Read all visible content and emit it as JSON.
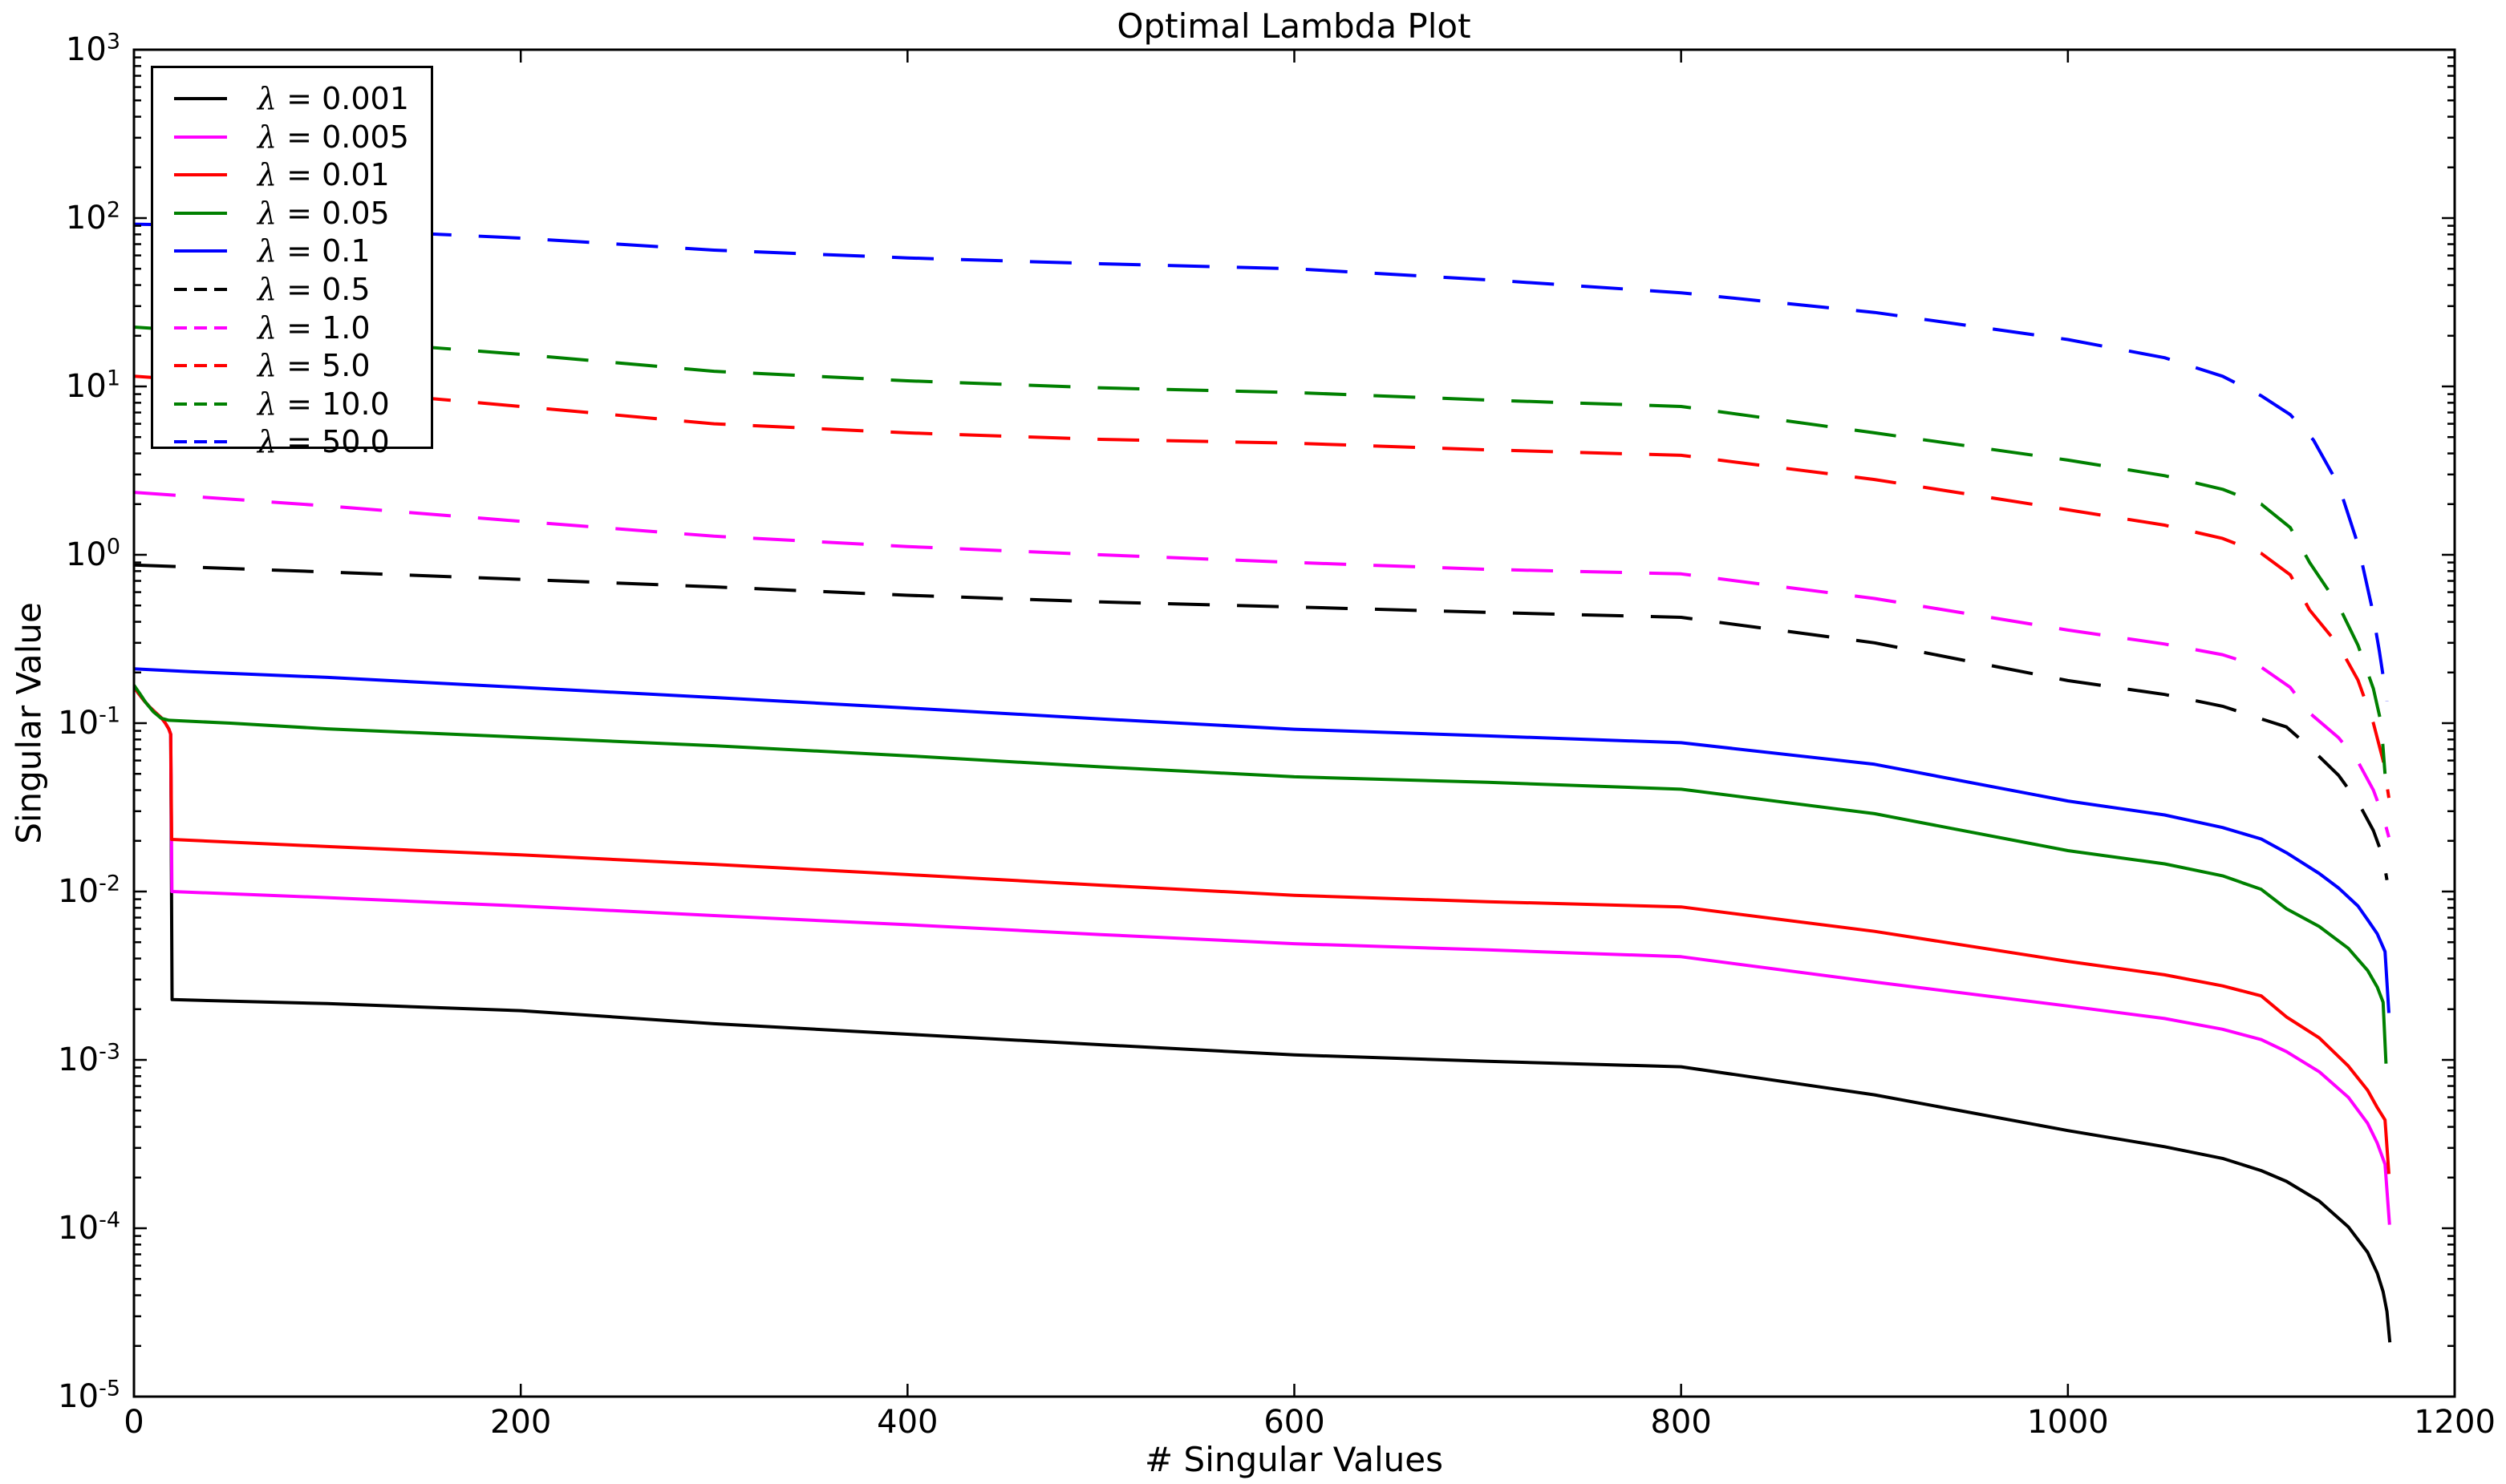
{
  "chart_data": {
    "type": "line",
    "title": "Optimal Lambda Plot",
    "xlabel": "# Singular Values",
    "ylabel": "Singular Value",
    "lambda_symbol": "λ",
    "grid": false,
    "legend_position": "upper-left",
    "x_axis": {
      "scale": "linear",
      "min": 0,
      "max": 1200,
      "ticks": [
        0,
        200,
        400,
        600,
        800,
        1000,
        1200
      ]
    },
    "y_axis": {
      "scale": "log",
      "min": 1e-05,
      "max": 1000,
      "tick_exponents": [
        3,
        2,
        1,
        0,
        -1,
        -2,
        -3,
        -4,
        -5
      ]
    },
    "colors": {
      "black": "#000000",
      "magenta": "#ff00ff",
      "red": "#ff0000",
      "green": "#008000",
      "blue": "#0000ff"
    },
    "series": [
      {
        "name": "lambda-0.001",
        "legend_value": "0.001",
        "color": "#000000",
        "style": "solid",
        "points": [
          [
            0,
            0.165
          ],
          [
            2,
            0.152
          ],
          [
            5,
            0.137
          ],
          [
            8,
            0.125
          ],
          [
            11,
            0.116
          ],
          [
            14,
            0.108
          ],
          [
            16,
            0.101
          ],
          [
            18,
            0.0925
          ],
          [
            19,
            0.086
          ],
          [
            19.7,
            0.00228
          ],
          [
            100,
            0.00216
          ],
          [
            200,
            0.00196
          ],
          [
            300,
            0.00164
          ],
          [
            400,
            0.00142
          ],
          [
            500,
            0.00123
          ],
          [
            600,
            0.00107
          ],
          [
            700,
            0.00098
          ],
          [
            800,
            0.00091
          ],
          [
            900,
            0.00062
          ],
          [
            1000,
            0.00038
          ],
          [
            1050,
            0.000305
          ],
          [
            1080,
            0.00026
          ],
          [
            1100,
            0.00022
          ],
          [
            1113,
            0.00019
          ],
          [
            1130,
            0.000145
          ],
          [
            1145,
            0.000102
          ],
          [
            1155,
            7.2e-05
          ],
          [
            1160,
            5.4e-05
          ],
          [
            1163,
            4.2e-05
          ],
          [
            1165,
            3.2e-05
          ],
          [
            1166.5,
            2.1e-05
          ]
        ]
      },
      {
        "name": "lambda-0.005",
        "legend_value": "0.005",
        "color": "#ff00ff",
        "style": "solid",
        "points": [
          [
            0,
            0.165
          ],
          [
            2,
            0.152
          ],
          [
            5,
            0.137
          ],
          [
            8,
            0.125
          ],
          [
            11,
            0.116
          ],
          [
            14,
            0.108
          ],
          [
            16,
            0.101
          ],
          [
            18,
            0.0925
          ],
          [
            19,
            0.086
          ],
          [
            19.6,
            0.01
          ],
          [
            100,
            0.0092
          ],
          [
            200,
            0.0082
          ],
          [
            300,
            0.0072
          ],
          [
            400,
            0.00635
          ],
          [
            500,
            0.00555
          ],
          [
            600,
            0.0049
          ],
          [
            700,
            0.0045
          ],
          [
            800,
            0.0041
          ],
          [
            900,
            0.0029
          ],
          [
            1000,
            0.00209
          ],
          [
            1050,
            0.00176
          ],
          [
            1080,
            0.00152
          ],
          [
            1100,
            0.00132
          ],
          [
            1113,
            0.00112
          ],
          [
            1130,
            0.00085
          ],
          [
            1145,
            0.0006
          ],
          [
            1155,
            0.00042
          ],
          [
            1160,
            0.00032
          ],
          [
            1164,
            0.00024
          ],
          [
            1166.3,
            0.000105
          ]
        ]
      },
      {
        "name": "lambda-0.01",
        "legend_value": "0.01",
        "color": "#ff0000",
        "style": "solid",
        "points": [
          [
            0,
            0.165
          ],
          [
            2,
            0.152
          ],
          [
            5,
            0.137
          ],
          [
            8,
            0.125
          ],
          [
            11,
            0.116
          ],
          [
            14,
            0.108
          ],
          [
            16,
            0.101
          ],
          [
            18,
            0.0925
          ],
          [
            19,
            0.086
          ],
          [
            19.5,
            0.0204
          ],
          [
            100,
            0.0185
          ],
          [
            200,
            0.0165
          ],
          [
            300,
            0.0145
          ],
          [
            400,
            0.0126
          ],
          [
            500,
            0.0109
          ],
          [
            600,
            0.0095
          ],
          [
            700,
            0.0087
          ],
          [
            800,
            0.0081
          ],
          [
            900,
            0.0058
          ],
          [
            1000,
            0.00385
          ],
          [
            1050,
            0.0032
          ],
          [
            1080,
            0.00275
          ],
          [
            1100,
            0.0024
          ],
          [
            1113,
            0.0018
          ],
          [
            1130,
            0.00135
          ],
          [
            1145,
            0.00092
          ],
          [
            1155,
            0.00066
          ],
          [
            1160,
            0.00052
          ],
          [
            1164,
            0.00044
          ],
          [
            1166,
            0.00021
          ]
        ]
      },
      {
        "name": "lambda-0.05",
        "legend_value": "0.05",
        "color": "#008000",
        "style": "solid",
        "points": [
          [
            0,
            0.168
          ],
          [
            3,
            0.15
          ],
          [
            6,
            0.133
          ],
          [
            10,
            0.117
          ],
          [
            14,
            0.107
          ],
          [
            18,
            0.104
          ],
          [
            50,
            0.1
          ],
          [
            100,
            0.0925
          ],
          [
            200,
            0.0825
          ],
          [
            300,
            0.0735
          ],
          [
            400,
            0.064
          ],
          [
            500,
            0.055
          ],
          [
            600,
            0.048
          ],
          [
            700,
            0.0445
          ],
          [
            800,
            0.0405
          ],
          [
            900,
            0.029
          ],
          [
            1000,
            0.0175
          ],
          [
            1050,
            0.0146
          ],
          [
            1080,
            0.0124
          ],
          [
            1100,
            0.0103
          ],
          [
            1113,
            0.0079
          ],
          [
            1130,
            0.0062
          ],
          [
            1145,
            0.0046
          ],
          [
            1155,
            0.0034
          ],
          [
            1160,
            0.0027
          ],
          [
            1163,
            0.0022
          ],
          [
            1164.5,
            0.00095
          ]
        ]
      },
      {
        "name": "lambda-0.1",
        "legend_value": "0.1",
        "color": "#0000ff",
        "style": "solid",
        "points": [
          [
            0,
            0.21
          ],
          [
            30,
            0.202
          ],
          [
            100,
            0.187
          ],
          [
            200,
            0.163
          ],
          [
            300,
            0.142
          ],
          [
            400,
            0.123
          ],
          [
            500,
            0.106
          ],
          [
            600,
            0.092
          ],
          [
            700,
            0.084
          ],
          [
            800,
            0.0765
          ],
          [
            900,
            0.057
          ],
          [
            1000,
            0.0345
          ],
          [
            1050,
            0.0285
          ],
          [
            1080,
            0.024
          ],
          [
            1100,
            0.0205
          ],
          [
            1113,
            0.017
          ],
          [
            1130,
            0.0128
          ],
          [
            1140,
            0.0105
          ],
          [
            1150,
            0.0082
          ],
          [
            1155,
            0.0068
          ],
          [
            1160,
            0.0056
          ],
          [
            1164,
            0.0044
          ],
          [
            1166,
            0.0019
          ]
        ]
      },
      {
        "name": "lambda-0.5",
        "legend_value": "0.5",
        "color": "#000000",
        "style": "dashed",
        "points": [
          [
            0,
            0.87
          ],
          [
            100,
            0.79
          ],
          [
            200,
            0.715
          ],
          [
            300,
            0.645
          ],
          [
            400,
            0.575
          ],
          [
            500,
            0.525
          ],
          [
            600,
            0.49
          ],
          [
            700,
            0.455
          ],
          [
            800,
            0.425
          ],
          [
            900,
            0.3
          ],
          [
            1000,
            0.179
          ],
          [
            1050,
            0.148
          ],
          [
            1080,
            0.126
          ],
          [
            1100,
            0.106
          ],
          [
            1113,
            0.095
          ],
          [
            1125,
            0.072
          ],
          [
            1140,
            0.049
          ],
          [
            1150,
            0.034
          ],
          [
            1158,
            0.023
          ],
          [
            1163,
            0.016
          ],
          [
            1165,
            0.0117
          ]
        ]
      },
      {
        "name": "lambda-1.0",
        "legend_value": "1.0",
        "color": "#ff00ff",
        "style": "dashed",
        "points": [
          [
            0,
            2.35
          ],
          [
            100,
            1.95
          ],
          [
            200,
            1.58
          ],
          [
            300,
            1.29
          ],
          [
            400,
            1.12
          ],
          [
            500,
            1.0
          ],
          [
            600,
            0.9
          ],
          [
            700,
            0.82
          ],
          [
            800,
            0.77
          ],
          [
            900,
            0.55
          ],
          [
            1000,
            0.357
          ],
          [
            1050,
            0.295
          ],
          [
            1080,
            0.255
          ],
          [
            1100,
            0.215
          ],
          [
            1115,
            0.163
          ],
          [
            1125,
            0.115
          ],
          [
            1140,
            0.082
          ],
          [
            1150,
            0.059
          ],
          [
            1158,
            0.04
          ],
          [
            1163,
            0.028
          ],
          [
            1166,
            0.021
          ]
        ]
      },
      {
        "name": "lambda-5.0",
        "legend_value": "5.0",
        "color": "#ff0000",
        "style": "dashed",
        "points": [
          [
            0,
            11.5
          ],
          [
            100,
            9.6
          ],
          [
            200,
            7.6
          ],
          [
            300,
            6.0
          ],
          [
            400,
            5.3
          ],
          [
            500,
            4.85
          ],
          [
            600,
            4.6
          ],
          [
            700,
            4.2
          ],
          [
            800,
            3.9
          ],
          [
            900,
            2.8
          ],
          [
            1000,
            1.85
          ],
          [
            1050,
            1.5
          ],
          [
            1080,
            1.25
          ],
          [
            1100,
            1.02
          ],
          [
            1115,
            0.76
          ],
          [
            1125,
            0.47
          ],
          [
            1140,
            0.29
          ],
          [
            1150,
            0.18
          ],
          [
            1158,
            0.1
          ],
          [
            1163,
            0.06
          ],
          [
            1166,
            0.036
          ]
        ]
      },
      {
        "name": "lambda-10.0",
        "legend_value": "10.0",
        "color": "#008000",
        "style": "dashed",
        "points": [
          [
            0,
            22.5
          ],
          [
            100,
            19
          ],
          [
            200,
            15.5
          ],
          [
            300,
            12.3
          ],
          [
            400,
            10.8
          ],
          [
            500,
            9.8
          ],
          [
            600,
            9.2
          ],
          [
            700,
            8.3
          ],
          [
            800,
            7.6
          ],
          [
            900,
            5.3
          ],
          [
            1000,
            3.65
          ],
          [
            1050,
            2.95
          ],
          [
            1080,
            2.45
          ],
          [
            1100,
            2.0
          ],
          [
            1115,
            1.45
          ],
          [
            1125,
            0.9
          ],
          [
            1140,
            0.5
          ],
          [
            1150,
            0.29
          ],
          [
            1158,
            0.16
          ],
          [
            1162,
            0.1
          ],
          [
            1164,
            0.05
          ]
        ]
      },
      {
        "name": "lambda-50.0",
        "legend_value": "50.0",
        "color": "#0000ff",
        "style": "dashed",
        "points": [
          [
            0,
            92
          ],
          [
            50,
            90
          ],
          [
            100,
            86
          ],
          [
            200,
            76
          ],
          [
            300,
            64.5
          ],
          [
            400,
            58
          ],
          [
            500,
            53.5
          ],
          [
            600,
            50
          ],
          [
            700,
            43
          ],
          [
            800,
            36
          ],
          [
            900,
            27.5
          ],
          [
            1000,
            19
          ],
          [
            1050,
            14.8
          ],
          [
            1080,
            11.5
          ],
          [
            1100,
            8.8
          ],
          [
            1115,
            6.8
          ],
          [
            1127,
            4.8
          ],
          [
            1140,
            2.6
          ],
          [
            1150,
            1.15
          ],
          [
            1157,
            0.5
          ],
          [
            1161,
            0.27
          ],
          [
            1165,
            0.135
          ]
        ]
      }
    ]
  }
}
